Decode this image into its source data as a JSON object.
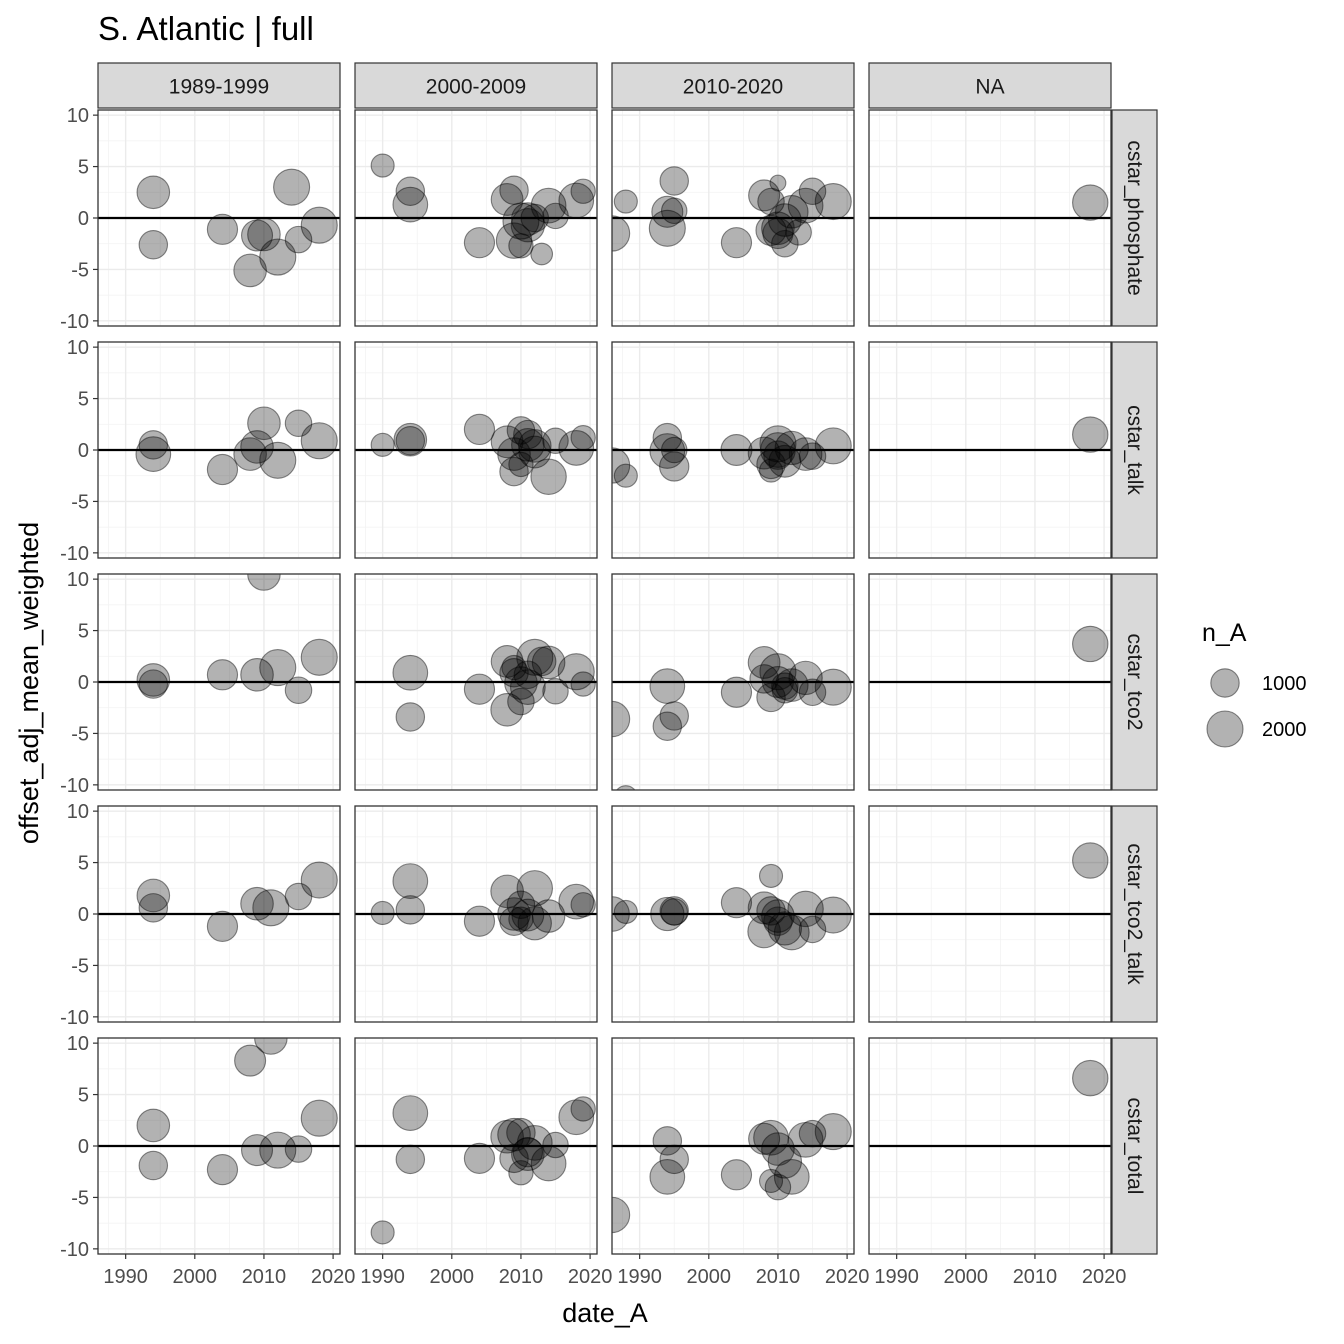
{
  "chart_data": {
    "type": "scatter",
    "title": "S. Atlantic | full",
    "xlabel": "date_A",
    "ylabel": "offset_adj_mean_weighted",
    "xlim": [
      1986,
      2021
    ],
    "ylim": [
      -10.5,
      10.5
    ],
    "x_ticks": [
      1990,
      2000,
      2010,
      2020
    ],
    "x_tick_labels": [
      "1990",
      "2000",
      "2010",
      "2020"
    ],
    "y_ticks": [
      -10,
      -5,
      0,
      5,
      10
    ],
    "y_tick_labels": [
      "-10",
      "-5",
      "0",
      "5",
      "10"
    ],
    "reference_line": 0,
    "columns": [
      "1989-1999",
      "2000-2009",
      "2010-2020",
      "NA"
    ],
    "rows": [
      "cstar_phosphate",
      "cstar_talk",
      "cstar_tco2",
      "cstar_tco2_talk",
      "cstar_total"
    ],
    "legend": {
      "title": "n_A",
      "entries": [
        {
          "label": "1000",
          "n": 1000
        },
        {
          "label": "2000",
          "n": 2000
        }
      ]
    },
    "panels": [
      [
        [
          [
            1994,
            2.5,
            1500
          ],
          [
            1994,
            -2.6,
            1000
          ],
          [
            2004,
            -1.1,
            1200
          ],
          [
            2008,
            -5.1,
            1500
          ],
          [
            2009,
            -1.7,
            1300
          ],
          [
            2010,
            -1.6,
            1500
          ],
          [
            2012,
            -3.8,
            2000
          ],
          [
            2014,
            3.0,
            2000
          ],
          [
            2015,
            -2.1,
            800
          ],
          [
            2018,
            -0.7,
            2000
          ]
        ],
        [
          [
            1990,
            5.1,
            500
          ],
          [
            1994,
            2.6,
            1000
          ],
          [
            1994,
            1.3,
            1800
          ],
          [
            2004,
            -2.4,
            1200
          ],
          [
            2008,
            1.8,
            1400
          ],
          [
            2009,
            2.7,
            1000
          ],
          [
            2009,
            -2.2,
            1900
          ],
          [
            2010,
            -0.3,
            2000
          ],
          [
            2010,
            -2.7,
            600
          ],
          [
            2011,
            -0.7,
            1600
          ],
          [
            2011,
            -0.1,
            1500
          ],
          [
            2012,
            0.0,
            900
          ],
          [
            2013,
            -3.5,
            400
          ],
          [
            2014,
            1.2,
            1800
          ],
          [
            2015,
            0.2,
            700
          ],
          [
            2018,
            1.7,
            1800
          ],
          [
            2019,
            2.6,
            600
          ]
        ],
        [
          [
            1986,
            -1.5,
            1900
          ],
          [
            1988,
            1.6,
            500
          ],
          [
            1994,
            0.6,
            1300
          ],
          [
            1994,
            -1.0,
            2000
          ],
          [
            1995,
            3.6,
            1000
          ],
          [
            1995,
            0.7,
            700
          ],
          [
            2004,
            -2.4,
            1200
          ],
          [
            2008,
            2.2,
            1300
          ],
          [
            2009,
            1.6,
            800
          ],
          [
            2009,
            -1.2,
            1200
          ],
          [
            2010,
            3.4,
            100
          ],
          [
            2010,
            -1.0,
            1500
          ],
          [
            2010,
            -1.5,
            1200
          ],
          [
            2011,
            -2.5,
            800
          ],
          [
            2011,
            -0.2,
            1500
          ],
          [
            2012,
            0.6,
            1500
          ],
          [
            2013,
            -1.4,
            700
          ],
          [
            2014,
            1.2,
            1800
          ],
          [
            2015,
            2.6,
            800
          ],
          [
            2018,
            1.6,
            2000
          ]
        ],
        [
          [
            2018,
            1.5,
            1900
          ]
        ]
      ],
      [
        [
          [
            1994,
            0.5,
            1000
          ],
          [
            1994,
            -0.4,
            1800
          ],
          [
            2004,
            -1.9,
            1200
          ],
          [
            2008,
            -0.4,
            1500
          ],
          [
            2009,
            0.3,
            1500
          ],
          [
            2010,
            2.6,
            1500
          ],
          [
            2012,
            -1.0,
            2000
          ],
          [
            2015,
            2.6,
            800
          ],
          [
            2018,
            0.9,
            2000
          ]
        ],
        [
          [
            1990,
            0.5,
            500
          ],
          [
            1994,
            1.0,
            1500
          ],
          [
            1994,
            0.9,
            1000
          ],
          [
            2004,
            2.0,
            1200
          ],
          [
            2008,
            0.8,
            1400
          ],
          [
            2009,
            -0.4,
            1500
          ],
          [
            2009,
            -2.1,
            1000
          ],
          [
            2010,
            -1.4,
            600
          ],
          [
            2010,
            1.9,
            900
          ],
          [
            2011,
            0.5,
            1500
          ],
          [
            2011,
            1.5,
            1000
          ],
          [
            2012,
            0.4,
            1500
          ],
          [
            2012,
            -0.2,
            1400
          ],
          [
            2014,
            -2.6,
            1900
          ],
          [
            2015,
            0.9,
            700
          ],
          [
            2018,
            0.2,
            1800
          ],
          [
            2019,
            1.2,
            600
          ]
        ],
        [
          [
            1986,
            -1.5,
            1900
          ],
          [
            1988,
            -2.5,
            500
          ],
          [
            1994,
            1.2,
            1000
          ],
          [
            1994,
            -0.1,
            1800
          ],
          [
            1995,
            0.0,
            700
          ],
          [
            1995,
            -1.6,
            1100
          ],
          [
            2004,
            0.0,
            1300
          ],
          [
            2008,
            -0.3,
            1400
          ],
          [
            2009,
            -1.4,
            1000
          ],
          [
            2009,
            -2.0,
            500
          ],
          [
            2010,
            0.6,
            2000
          ],
          [
            2010,
            0.0,
            1800
          ],
          [
            2010,
            -0.5,
            1000
          ],
          [
            2011,
            -1.1,
            1400
          ],
          [
            2012,
            0.2,
            1600
          ],
          [
            2014,
            -0.4,
            1500
          ],
          [
            2015,
            -0.6,
            800
          ],
          [
            2018,
            0.4,
            2000
          ]
        ],
        [
          [
            2018,
            1.5,
            1900
          ]
        ]
      ],
      [
        [
          [
            1994,
            0.2,
            1500
          ],
          [
            1994,
            -0.2,
            1000
          ],
          [
            2004,
            0.7,
            1200
          ],
          [
            2009,
            0.7,
            1500
          ],
          [
            2010,
            10.5,
            1500
          ],
          [
            2012,
            1.4,
            2000
          ],
          [
            2015,
            -0.8,
            800
          ],
          [
            2018,
            2.4,
            2000
          ]
        ],
        [
          [
            1994,
            0.9,
            1800
          ],
          [
            1994,
            -3.4,
            1000
          ],
          [
            2004,
            -0.7,
            1200
          ],
          [
            2008,
            2.0,
            1400
          ],
          [
            2008,
            -2.7,
            1500
          ],
          [
            2009,
            0.9,
            1000
          ],
          [
            2009,
            1.4,
            600
          ],
          [
            2010,
            -1.9,
            800
          ],
          [
            2010,
            -0.1,
            1500
          ],
          [
            2011,
            -0.5,
            1800
          ],
          [
            2011,
            0.7,
            900
          ],
          [
            2012,
            2.4,
            2000
          ],
          [
            2013,
            2.0,
            1000
          ],
          [
            2014,
            1.9,
            1500
          ],
          [
            2015,
            -0.9,
            700
          ],
          [
            2018,
            1.0,
            2000
          ],
          [
            2019,
            -0.2,
            600
          ]
        ],
        [
          [
            1986,
            -3.6,
            1900
          ],
          [
            1988,
            -11.2,
            500
          ],
          [
            1994,
            -0.4,
            1800
          ],
          [
            1994,
            -4.3,
            1000
          ],
          [
            1995,
            -3.3,
            1000
          ],
          [
            2004,
            -1.0,
            1200
          ],
          [
            2008,
            1.9,
            1400
          ],
          [
            2008,
            0.3,
            1000
          ],
          [
            2009,
            -1.5,
            1000
          ],
          [
            2010,
            0.0,
            1300
          ],
          [
            2010,
            1.0,
            2000
          ],
          [
            2011,
            -0.8,
            700
          ],
          [
            2011,
            -0.4,
            800
          ],
          [
            2012,
            -0.3,
            1500
          ],
          [
            2014,
            0.4,
            1600
          ],
          [
            2015,
            -1.0,
            800
          ],
          [
            2018,
            -0.5,
            2000
          ]
        ],
        [
          [
            2018,
            3.7,
            1900
          ]
        ]
      ],
      [
        [
          [
            1994,
            1.8,
            1500
          ],
          [
            1994,
            0.6,
            1000
          ],
          [
            2004,
            -1.2,
            1200
          ],
          [
            2009,
            1.0,
            1500
          ],
          [
            2011,
            0.6,
            2000
          ],
          [
            2015,
            1.7,
            800
          ],
          [
            2018,
            3.3,
            2000
          ]
        ],
        [
          [
            1990,
            0.1,
            500
          ],
          [
            1994,
            3.2,
            1800
          ],
          [
            1994,
            0.4,
            1000
          ],
          [
            2004,
            -0.7,
            1200
          ],
          [
            2008,
            2.2,
            1500
          ],
          [
            2009,
            0.0,
            1500
          ],
          [
            2009,
            -0.7,
            1000
          ],
          [
            2010,
            -0.5,
            600
          ],
          [
            2010,
            0.9,
            900
          ],
          [
            2011,
            -0.1,
            1400
          ],
          [
            2012,
            2.5,
            1900
          ],
          [
            2012,
            -0.9,
            1600
          ],
          [
            2014,
            -0.2,
            1500
          ],
          [
            2018,
            1.2,
            1800
          ],
          [
            2019,
            0.9,
            600
          ]
        ],
        [
          [
            1986,
            0.0,
            1800
          ],
          [
            1988,
            0.2,
            500
          ],
          [
            1994,
            0.0,
            1600
          ],
          [
            1995,
            0.3,
            1000
          ],
          [
            1995,
            0.2,
            800
          ],
          [
            2004,
            1.1,
            1200
          ],
          [
            2008,
            0.6,
            1400
          ],
          [
            2008,
            -1.7,
            1500
          ],
          [
            2009,
            3.7,
            500
          ],
          [
            2009,
            0.3,
            1000
          ],
          [
            2010,
            -0.2,
            1500
          ],
          [
            2010,
            -0.7,
            1000
          ],
          [
            2011,
            -1.4,
            1600
          ],
          [
            2012,
            -1.8,
            1800
          ],
          [
            2014,
            0.5,
            1900
          ],
          [
            2015,
            -1.5,
            800
          ],
          [
            2018,
            -0.1,
            2000
          ]
        ],
        [
          [
            2018,
            5.2,
            1900
          ]
        ]
      ],
      [
        [
          [
            1994,
            2.0,
            1500
          ],
          [
            1994,
            -1.9,
            1000
          ],
          [
            2004,
            -2.3,
            1200
          ],
          [
            2008,
            8.3,
            1300
          ],
          [
            2009,
            -0.4,
            1300
          ],
          [
            2011,
            10.5,
            1500
          ],
          [
            2012,
            -0.4,
            2000
          ],
          [
            2015,
            -0.3,
            800
          ],
          [
            2018,
            2.7,
            2000
          ]
        ],
        [
          [
            1990,
            -8.4,
            500
          ],
          [
            1994,
            3.2,
            1800
          ],
          [
            1994,
            -1.3,
            1000
          ],
          [
            2004,
            -1.2,
            1200
          ],
          [
            2008,
            0.9,
            1500
          ],
          [
            2009,
            1.1,
            1500
          ],
          [
            2009,
            -1.2,
            1000
          ],
          [
            2010,
            -2.6,
            600
          ],
          [
            2010,
            1.3,
            1000
          ],
          [
            2011,
            -0.8,
            1500
          ],
          [
            2011,
            -0.6,
            1100
          ],
          [
            2012,
            0.3,
            1800
          ],
          [
            2014,
            -1.7,
            1800
          ],
          [
            2015,
            0.1,
            700
          ],
          [
            2018,
            2.8,
            1800
          ],
          [
            2019,
            3.6,
            600
          ]
        ],
        [
          [
            1986,
            -6.7,
            1900
          ],
          [
            1994,
            0.5,
            1000
          ],
          [
            1994,
            -3.0,
            1800
          ],
          [
            1995,
            -1.3,
            1000
          ],
          [
            2004,
            -2.8,
            1200
          ],
          [
            2008,
            0.7,
            1300
          ],
          [
            2009,
            0.8,
            1800
          ],
          [
            2009,
            -3.4,
            500
          ],
          [
            2010,
            -0.3,
            1500
          ],
          [
            2010,
            -4.0,
            700
          ],
          [
            2011,
            -1.5,
            1600
          ],
          [
            2012,
            -3.0,
            1800
          ],
          [
            2014,
            0.6,
            1800
          ],
          [
            2015,
            1.2,
            800
          ],
          [
            2018,
            1.4,
            2000
          ]
        ],
        [
          [
            2018,
            6.6,
            1900
          ]
        ]
      ]
    ]
  }
}
